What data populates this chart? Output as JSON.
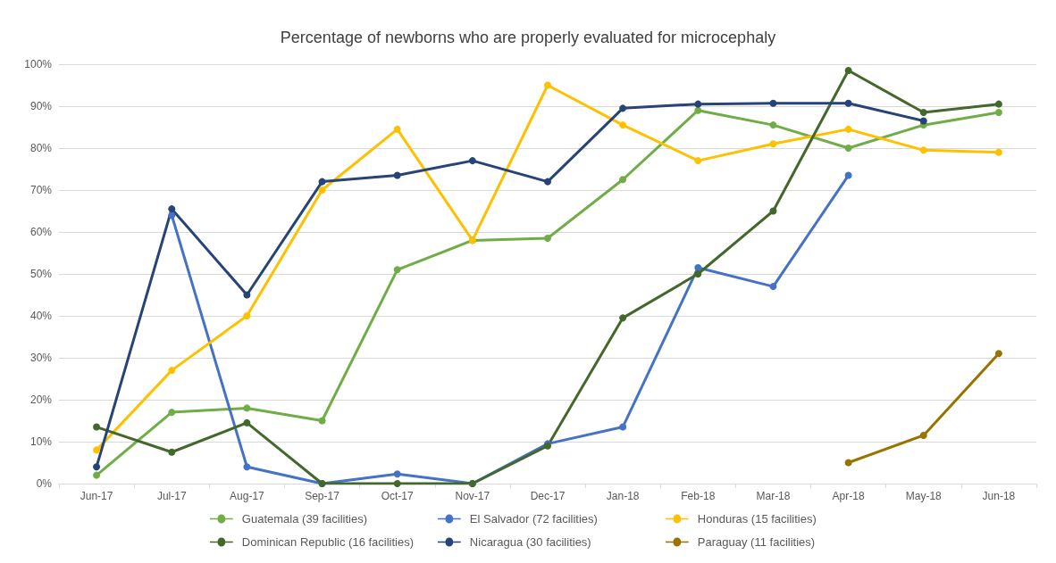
{
  "chart_data": {
    "type": "line",
    "title": "Percentage of newborns who are properly evaluated for microcephaly",
    "categories": [
      "Jun-17",
      "Jul-17",
      "Aug-17",
      "Sep-17",
      "Oct-17",
      "Nov-17",
      "Dec-17",
      "Jan-18",
      "Feb-18",
      "Mar-18",
      "Apr-18",
      "May-18",
      "Jun-18"
    ],
    "series": [
      {
        "name": "Guatemala (39 facilities)",
        "color": "#70ad47",
        "values": [
          2,
          17,
          18,
          15,
          51,
          58,
          58.5,
          72.5,
          89,
          85.5,
          80,
          85.5,
          88.5
        ]
      },
      {
        "name": "El Salvador (72 facilities)",
        "color": "#4472c4",
        "values": [
          null,
          64,
          4,
          0,
          2.3,
          0,
          9.5,
          13.5,
          51.5,
          47,
          73.5,
          null,
          null
        ]
      },
      {
        "name": "Honduras (15 facilities)",
        "color": "#ffc000",
        "values": [
          8,
          27,
          40,
          70,
          84.5,
          58,
          95,
          85.5,
          77,
          81,
          84.5,
          79.5,
          79
        ]
      },
      {
        "name": "Dominican Republic (16 facilities)",
        "color": "#43682b",
        "values": [
          13.5,
          7.5,
          14.5,
          0,
          0,
          0,
          9,
          39.5,
          50,
          65,
          98.5,
          88.5,
          90.5
        ]
      },
      {
        "name": "Nicaragua (30 facilities)",
        "color": "#264478",
        "values": [
          4,
          65.5,
          45,
          72,
          73.5,
          77,
          72,
          89.5,
          90.5,
          90.7,
          90.7,
          86.5,
          null
        ]
      },
      {
        "name": "Paraguay (11 facilities)",
        "color": "#997300",
        "values": [
          null,
          null,
          null,
          null,
          null,
          null,
          null,
          null,
          null,
          null,
          5,
          11.5,
          31
        ]
      }
    ],
    "ylim": [
      0,
      100
    ],
    "yticks": [
      {
        "value": 0,
        "label": "0%"
      },
      {
        "value": 10,
        "label": "10%"
      },
      {
        "value": 20,
        "label": "20%"
      },
      {
        "value": 30,
        "label": "30%"
      },
      {
        "value": 40,
        "label": "40%"
      },
      {
        "value": 50,
        "label": "50%"
      },
      {
        "value": 60,
        "label": "60%"
      },
      {
        "value": 70,
        "label": "70%"
      },
      {
        "value": 80,
        "label": "80%"
      },
      {
        "value": 90,
        "label": "90%"
      },
      {
        "value": 100,
        "label": "100%"
      }
    ],
    "grid": "y",
    "legend": "bottom",
    "marker": "circle"
  }
}
